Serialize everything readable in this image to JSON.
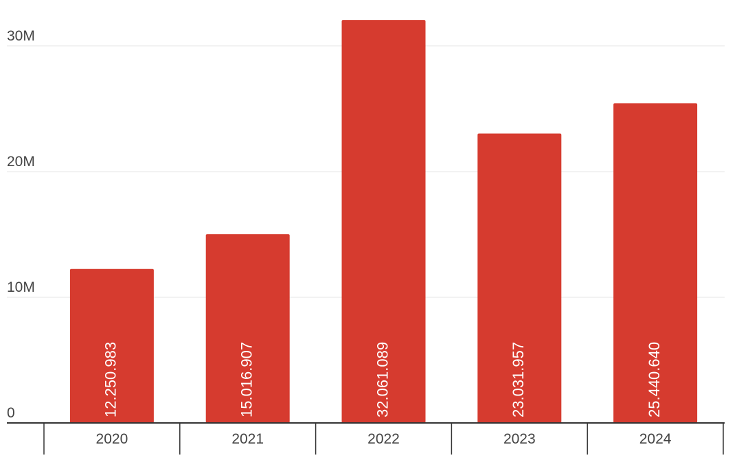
{
  "chart_data": {
    "type": "bar",
    "categories": [
      "2020",
      "2021",
      "2022",
      "2023",
      "2024"
    ],
    "values": [
      12250983,
      15016907,
      32061089,
      23031957,
      25440640
    ],
    "value_labels": [
      "12.250.983",
      "15.016.907",
      "32.061.089",
      "23.031.957",
      "25.440.640"
    ],
    "color": "#d63b2f",
    "ylim": [
      0,
      33000000
    ],
    "yticks": [
      0,
      {
        "value": 10000000,
        "label": "10M"
      },
      {
        "value": 20000000,
        "label": "20M"
      },
      {
        "value": 30000000,
        "label": "30M"
      }
    ],
    "grid": true
  }
}
